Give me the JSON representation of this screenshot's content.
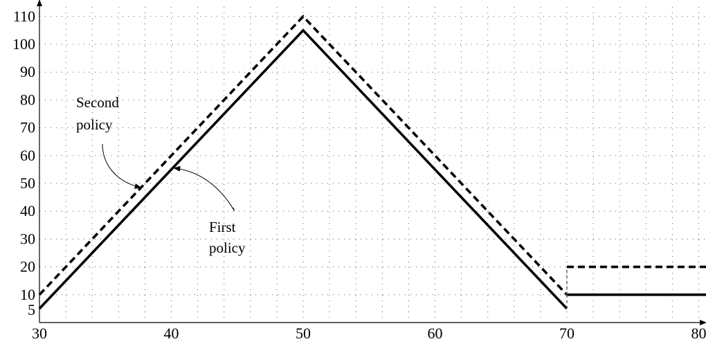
{
  "chart_data": {
    "type": "line",
    "xlim": [
      30,
      82
    ],
    "ylim": [
      0,
      112
    ],
    "x_ticks": [
      30,
      40,
      50,
      60,
      70,
      80
    ],
    "y_ticks": [
      5,
      10,
      20,
      30,
      40,
      50,
      60,
      70,
      80,
      90,
      100,
      110
    ],
    "grid": true,
    "series": [
      {
        "key": "first",
        "style": "solid",
        "color": "#000000",
        "segments": [
          [
            [
              30,
              5
            ],
            [
              50,
              105
            ],
            [
              70,
              5
            ]
          ],
          [
            [
              70,
              10
            ],
            [
              82,
              10
            ]
          ]
        ]
      },
      {
        "key": "second",
        "style": "dashed",
        "color": "#000000",
        "segments": [
          [
            [
              30,
              10
            ],
            [
              50,
              110
            ],
            [
              70,
              10
            ]
          ],
          [
            [
              70,
              20
            ],
            [
              82,
              20
            ]
          ]
        ]
      }
    ],
    "annotations": [
      {
        "key": "second",
        "lines": [
          "Second",
          "policy"
        ],
        "target": [
          37.7,
          48.5
        ]
      },
      {
        "key": "first",
        "lines": [
          "First",
          "policy"
        ],
        "target": [
          40.2,
          55.5
        ]
      }
    ]
  }
}
